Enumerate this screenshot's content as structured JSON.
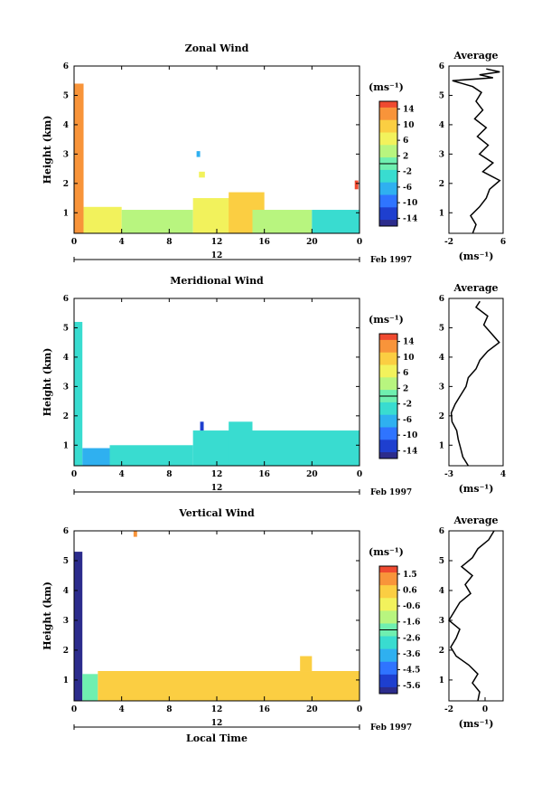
{
  "colorbar_ticks_uv": [
    "14",
    "10",
    "6",
    "2",
    "-2",
    "-6",
    "-10",
    "-14"
  ],
  "colorbar_ticks_w": [
    "1.5",
    "0.6",
    "-0.6",
    "-1.6",
    "-2.6",
    "-3.6",
    "-4.5",
    "-5.6"
  ],
  "y_ticks": [
    "1",
    "2",
    "3",
    "4",
    "5",
    "6"
  ],
  "x_ticks": [
    "0",
    "4",
    "8",
    "12",
    "16",
    "20",
    "0"
  ],
  "date_center": "12",
  "date_suffix": "Feb 1997",
  "units": "(ms⁻¹)",
  "ylabel": "Height (km)",
  "xlabel": "Local Time",
  "chart_data": [
    {
      "type": "heatmap",
      "title": "Zonal Wind",
      "ylabel": "Height (km)",
      "ylim": [
        0.3,
        6
      ],
      "xlim": [
        0,
        24
      ],
      "colorbar_ticks": [
        14,
        10,
        6,
        2,
        -2,
        -6,
        -10,
        -14
      ],
      "cells": [
        {
          "x0": 0,
          "x1": 0.8,
          "y0": 0.3,
          "y1": 5.4,
          "v": 12
        },
        {
          "x0": 0.8,
          "x1": 4,
          "y0": 0.3,
          "y1": 1.2,
          "v": 6
        },
        {
          "x0": 4,
          "x1": 10,
          "y0": 0.3,
          "y1": 1.1,
          "v": 4
        },
        {
          "x0": 10.5,
          "x1": 11,
          "y0": 2.2,
          "y1": 2.4,
          "v": 6
        },
        {
          "x0": 10.3,
          "x1": 10.6,
          "y0": 2.9,
          "y1": 3.1,
          "v": -6
        },
        {
          "x0": 10,
          "x1": 15,
          "y0": 0.3,
          "y1": 1.5,
          "v": 6
        },
        {
          "x0": 13,
          "x1": 16,
          "y0": 0.3,
          "y1": 1.7,
          "v": 8
        },
        {
          "x0": 15,
          "x1": 20,
          "y0": 0.3,
          "y1": 1.1,
          "v": 2
        },
        {
          "x0": 20,
          "x1": 24,
          "y0": 0.3,
          "y1": 1.1,
          "v": -2
        },
        {
          "x0": 23.6,
          "x1": 23.9,
          "y0": 1.8,
          "y1": 2.1,
          "v": 14
        }
      ],
      "profile": {
        "xlim": [
          -2,
          6
        ],
        "xticks": [
          "-2",
          "6"
        ],
        "heights": [
          0.3,
          0.6,
          0.9,
          1.2,
          1.5,
          1.8,
          2.1,
          2.4,
          2.7,
          3.0,
          3.3,
          3.6,
          3.9,
          4.2,
          4.5,
          4.8,
          5.1,
          5.3,
          5.5,
          5.6,
          5.7,
          5.8,
          5.9
        ],
        "values": [
          1.5,
          2.0,
          1.2,
          2.5,
          3.5,
          4.0,
          5.5,
          3.0,
          4.5,
          2.5,
          3.8,
          2.2,
          3.5,
          1.8,
          3.0,
          2.0,
          2.8,
          1.5,
          -1.5,
          4.5,
          2.5,
          5.5,
          3.5
        ]
      }
    },
    {
      "type": "heatmap",
      "title": "Meridional Wind",
      "ylabel": "Height (km)",
      "ylim": [
        0.3,
        6
      ],
      "xlim": [
        0,
        24
      ],
      "colorbar_ticks": [
        14,
        10,
        6,
        2,
        -2,
        -6,
        -10,
        -14
      ],
      "cells": [
        {
          "x0": 0,
          "x1": 0.7,
          "y0": 0.3,
          "y1": 5.2,
          "v": -2
        },
        {
          "x0": 0.7,
          "x1": 3,
          "y0": 0.3,
          "y1": 0.9,
          "v": -6
        },
        {
          "x0": 3,
          "x1": 10,
          "y0": 0.3,
          "y1": 1.0,
          "v": -2
        },
        {
          "x0": 10.6,
          "x1": 10.9,
          "y0": 1.3,
          "y1": 1.8,
          "v": -10
        },
        {
          "x0": 10,
          "x1": 24,
          "y0": 0.3,
          "y1": 1.5,
          "v": -2
        },
        {
          "x0": 13,
          "x1": 15,
          "y0": 0.3,
          "y1": 1.8,
          "v": -2
        }
      ],
      "profile": {
        "xlim": [
          -3,
          4
        ],
        "xticks": [
          "-3",
          "4"
        ],
        "heights": [
          0.3,
          0.6,
          0.9,
          1.2,
          1.5,
          1.8,
          2.1,
          2.4,
          2.7,
          3.0,
          3.3,
          3.6,
          3.9,
          4.2,
          4.5,
          4.8,
          5.1,
          5.4,
          5.7,
          5.9
        ],
        "values": [
          -0.5,
          -1.2,
          -1.5,
          -1.8,
          -2.0,
          -2.6,
          -2.7,
          -2.2,
          -1.5,
          -0.8,
          -0.5,
          0.5,
          1.0,
          2.0,
          3.5,
          2.5,
          1.5,
          2.0,
          0.5,
          1.0
        ]
      }
    },
    {
      "type": "heatmap",
      "title": "Vertical Wind",
      "ylabel": "Height (km)",
      "xlabel": "Local Time",
      "ylim": [
        0.3,
        6
      ],
      "xlim": [
        0,
        24
      ],
      "colorbar_ticks": [
        1.5,
        0.6,
        -0.6,
        -1.6,
        -2.6,
        -3.6,
        -4.5,
        -5.6
      ],
      "cells": [
        {
          "x0": 0,
          "x1": 0.7,
          "y0": 0.3,
          "y1": 5.3,
          "v": -5.6
        },
        {
          "x0": 0.7,
          "x1": 2,
          "y0": 0.3,
          "y1": 1.2,
          "v": -2
        },
        {
          "x0": 2,
          "x1": 24,
          "y0": 0.3,
          "y1": 1.3,
          "v": 0.4
        },
        {
          "x0": 5,
          "x1": 5.3,
          "y0": 5.8,
          "y1": 6.0,
          "v": 0.6
        },
        {
          "x0": 19,
          "x1": 20,
          "y0": 1.3,
          "y1": 1.8,
          "v": 0.2
        }
      ],
      "profile": {
        "xlim": [
          -2,
          1
        ],
        "xticks": [
          "-2",
          "0"
        ],
        "heights": [
          0.3,
          0.6,
          0.9,
          1.2,
          1.5,
          1.8,
          2.1,
          2.4,
          2.7,
          3.0,
          3.3,
          3.6,
          3.9,
          4.2,
          4.5,
          4.8,
          5.1,
          5.4,
          5.7,
          6.0
        ],
        "values": [
          -0.4,
          -0.3,
          -0.7,
          -0.4,
          -0.9,
          -1.6,
          -1.9,
          -1.6,
          -1.4,
          -2.0,
          -1.7,
          -1.4,
          -0.8,
          -1.1,
          -0.7,
          -1.3,
          -0.7,
          -0.4,
          0.2,
          0.5
        ]
      }
    }
  ]
}
